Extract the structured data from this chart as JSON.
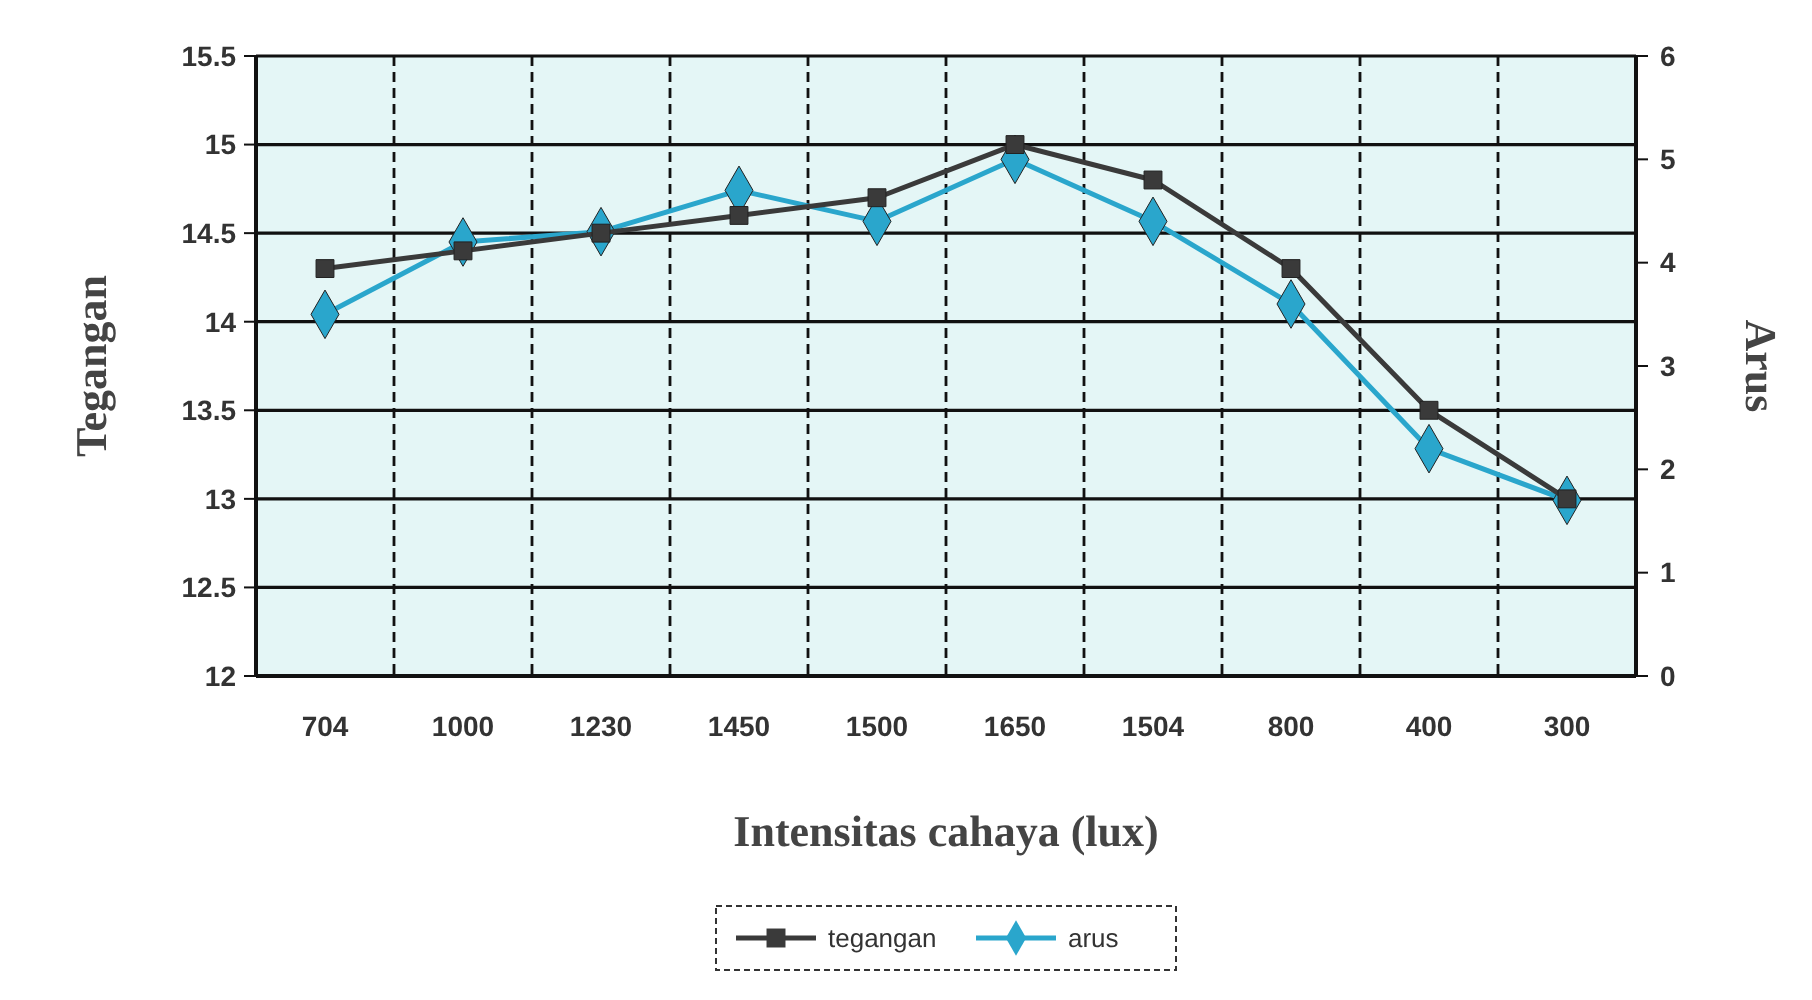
{
  "chart_data": {
    "type": "line",
    "xlabel": "Intensitas cahaya (lux)",
    "ylabel": "Tegangan",
    "y2label": "Arus",
    "categories": [
      "704",
      "1000",
      "1230",
      "1450",
      "1500",
      "1650",
      "1504",
      "800",
      "400",
      "300"
    ],
    "series": [
      {
        "name": "tegangan",
        "color": "#3a3a3a",
        "marker": "square",
        "values": [
          14.3,
          14.4,
          14.5,
          14.6,
          14.7,
          15.0,
          14.8,
          14.3,
          13.5,
          13.0
        ]
      },
      {
        "name": "arus",
        "color": "#2aa6cc",
        "marker": "diamond",
        "axis": "y2",
        "values": [
          3.5,
          4.2,
          4.3,
          4.7,
          4.4,
          5.0,
          4.4,
          3.6,
          2.2,
          1.7
        ]
      }
    ],
    "ylim": [
      12,
      15.5
    ],
    "yticks": [
      12,
      12.5,
      13,
      13.5,
      14,
      14.5,
      15,
      15.5
    ],
    "y2lim": [
      0,
      6
    ],
    "y2ticks": [
      0,
      1,
      2,
      3,
      4,
      5,
      6
    ],
    "grid": true,
    "legend": "bottom"
  }
}
